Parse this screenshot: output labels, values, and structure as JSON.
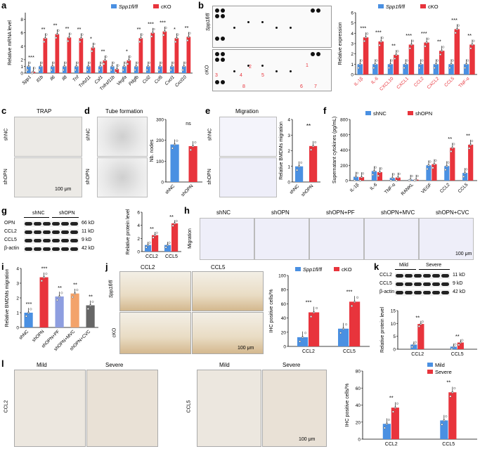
{
  "labels": {
    "a": "a",
    "b": "b",
    "c": "c",
    "d": "d",
    "e": "e",
    "f": "f",
    "g": "g",
    "h": "h",
    "i": "i",
    "j": "j",
    "k": "k",
    "l": "l"
  },
  "legend": {
    "ctrl": "Spp1fl/fl",
    "cko": "cKO",
    "shNC": "shNC",
    "shOPN": "shOPN",
    "mild": "Mild",
    "severe": "Severe"
  },
  "colors": {
    "ctrl": "#4a90e2",
    "cko": "#e8343c"
  },
  "panel_a": {
    "ylabel": "Relative mRNA level",
    "genes": [
      "Spp1",
      "Il1b",
      "Il6",
      "Il8",
      "Tnf",
      "Tnfsf11",
      "Csf1",
      "Tnfrsf11b",
      "Vegfa",
      "Pdgfb",
      "Ccl2",
      "Ccl5",
      "Cxcl1",
      "Cxcl10"
    ],
    "sig": [
      "***",
      "**",
      "**",
      "**",
      "**",
      "*",
      "**",
      "",
      "*",
      "**",
      "***",
      "***",
      "*",
      "**"
    ]
  },
  "panel_b": {
    "ylabel": "Relative expression",
    "arr_labels": {
      "ctrl": "Spp1fl/fl",
      "cko": "cKO"
    },
    "items": [
      "1. IL-1β",
      "2. IL-6",
      "3. CXCL10",
      "4. CXCL1",
      "5. CCL2",
      "6. CXCL2",
      "7. CCL5",
      "8. TNF-α"
    ],
    "sig": [
      "***",
      "***",
      "**",
      "***",
      "***",
      "**",
      "***",
      "**"
    ],
    "nums": [
      "1",
      "2",
      "3",
      "4",
      "5",
      "6",
      "7",
      "8"
    ]
  },
  "panel_c": {
    "title": "TRAP",
    "rows": [
      "shNC",
      "shOPN"
    ],
    "scale": "100 μm"
  },
  "panel_d": {
    "title": "Tube formation",
    "ylabel": "Nb. nodes",
    "sig": "ns",
    "rows": [
      "shNC",
      "shOPN"
    ]
  },
  "panel_e": {
    "title": "Migration",
    "ylabel": "Relative BMDMs migration",
    "sig": "**",
    "rows": [
      "shNC",
      "shOPN"
    ]
  },
  "panel_f": {
    "ylabel": "Supernatant cytokines (pg/mL)",
    "cats": [
      "IL-1β",
      "IL-6",
      "TNF-α",
      "RANKL",
      "VEGF",
      "CCL2",
      "CCL5"
    ],
    "sig": [
      "",
      "",
      "",
      "",
      "",
      "**",
      "**"
    ]
  },
  "panel_g": {
    "rows": [
      "OPN",
      "CCL2",
      "CCL5",
      "β-actin"
    ],
    "kda": [
      "66 kD",
      "11 kD",
      "9 kD",
      "42 kD"
    ],
    "groups": [
      "shNC",
      "shOPN"
    ],
    "ylabel": "Relative protein level",
    "cats": [
      "CCL2",
      "CCL5"
    ],
    "sig": [
      "**",
      "**"
    ]
  },
  "panel_h": {
    "cols": [
      "shNC",
      "shOPN",
      "shOPN+PF",
      "shOPN+MVC",
      "shOPN+CVC"
    ],
    "rowlabel": "Migration",
    "scale": "100 μm"
  },
  "panel_i": {
    "ylabel": "Relative BMDMs migration",
    "cats": [
      "shNC",
      "shOPN",
      "shOPN+PF",
      "shOPN+MVC",
      "shOPN+CVC"
    ],
    "sig": [
      "***",
      "***",
      "**",
      "**",
      "**"
    ]
  },
  "panel_j": {
    "cols": [
      "CCL2",
      "CCL5"
    ],
    "rows": [
      "Spp1fl/fl",
      "cKO"
    ],
    "ylabel": "IHC positive cells/%",
    "cats": [
      "CCL2",
      "CCL5"
    ],
    "sig": [
      "***",
      "***"
    ],
    "scale": "100 μm"
  },
  "panel_k": {
    "groups": [
      "Mild",
      "Severe"
    ],
    "rows": [
      "CCL2",
      "CCL5",
      "β-actin"
    ],
    "kda": [
      "11 kD",
      "9 kD",
      "42 kD"
    ],
    "ylabel": "Relative protein level",
    "cats": [
      "CCL2",
      "CCL5"
    ],
    "sig": [
      "**",
      "**"
    ]
  },
  "panel_l": {
    "cols": [
      "Mild",
      "Severe"
    ],
    "left_row": "CCL2",
    "right_row": "CCL5",
    "ylabel": "IHC positive cells/%",
    "cats": [
      "CCL2",
      "CCL5"
    ],
    "sig": [
      "**",
      "**"
    ],
    "scale": "100 μm"
  },
  "chart_data": [
    {
      "id": "a",
      "type": "bar",
      "categories": [
        "Spp1",
        "Il1b",
        "Il6",
        "Il8",
        "Tnf",
        "Tnfsf11",
        "Csf1",
        "Tnfrsf11b",
        "Vegfa",
        "Pdgfb",
        "Ccl2",
        "Ccl5",
        "Cxcl1",
        "Cxcl10"
      ],
      "series": [
        {
          "name": "Spp1fl/fl",
          "values": [
            1,
            1,
            1,
            1,
            1,
            1,
            1,
            1,
            1,
            1,
            1,
            1,
            1,
            1
          ]
        },
        {
          "name": "cKO",
          "values": [
            0.2,
            5.2,
            5.8,
            5.3,
            5.2,
            3.8,
            1.9,
            0.6,
            1.9,
            5.2,
            6.0,
            6.2,
            5.2,
            5.4
          ]
        }
      ],
      "ylabel": "Relative mRNA level",
      "ylim": [
        0,
        9
      ],
      "yticks": [
        0,
        1,
        2,
        4,
        6,
        8
      ]
    },
    {
      "id": "b",
      "type": "bar",
      "categories": [
        "IL-1β",
        "IL-6",
        "CXCL10",
        "CXCL1",
        "CCL2",
        "CXCL2",
        "CCL5",
        "TNF-α"
      ],
      "series": [
        {
          "name": "Spp1fl/fl",
          "values": [
            1,
            1,
            1,
            1,
            1,
            1,
            1,
            1
          ]
        },
        {
          "name": "cKO",
          "values": [
            3.6,
            3.2,
            1.9,
            2.9,
            3.1,
            2.3,
            4.4,
            2.9
          ]
        }
      ],
      "ylabel": "Relative expression",
      "ylim": [
        0,
        6
      ],
      "yticks": [
        0,
        1,
        2,
        3,
        4,
        5,
        6
      ]
    },
    {
      "id": "d",
      "type": "bar",
      "categories": [
        "shNC",
        "shOPN"
      ],
      "values": [
        180,
        172
      ],
      "ylabel": "Nb. nodes",
      "ylim": [
        0,
        300
      ],
      "yticks": [
        0,
        100,
        200,
        300
      ]
    },
    {
      "id": "e",
      "type": "bar",
      "categories": [
        "shNC",
        "shOPN"
      ],
      "values": [
        1.0,
        2.3
      ],
      "ylabel": "Relative BMDMs migration",
      "ylim": [
        0,
        4
      ],
      "yticks": [
        0,
        1,
        2,
        3,
        4
      ]
    },
    {
      "id": "f",
      "type": "bar",
      "categories": [
        "IL-1β",
        "IL-6",
        "TNF-α",
        "RANKL",
        "VEGF",
        "CCL2",
        "CCL5"
      ],
      "series": [
        {
          "name": "shNC",
          "values": [
            50,
            125,
            35,
            12,
            200,
            190,
            100
          ]
        },
        {
          "name": "shOPN",
          "values": [
            45,
            110,
            40,
            12,
            215,
            430,
            470
          ]
        }
      ],
      "ylabel": "Supernatant cytokines (pg/mL)",
      "ylim": [
        0,
        800
      ],
      "yticks": [
        0,
        200,
        400,
        600,
        800
      ]
    },
    {
      "id": "g",
      "type": "bar",
      "categories": [
        "CCL2",
        "CCL5"
      ],
      "series": [
        {
          "name": "shNC",
          "values": [
            1.0,
            1.0
          ]
        },
        {
          "name": "shOPN",
          "values": [
            2.5,
            4.3
          ]
        }
      ],
      "ylabel": "Relative protein level",
      "ylim": [
        0,
        6
      ],
      "yticks": [
        0,
        2,
        4,
        6
      ]
    },
    {
      "id": "i",
      "type": "bar",
      "categories": [
        "shNC",
        "shOPN",
        "shOPN+PF",
        "shOPN+MVC",
        "shOPN+CVC"
      ],
      "values": [
        1.0,
        3.4,
        2.1,
        2.3,
        1.5
      ],
      "ylabel": "Relative BMDMs migration",
      "ylim": [
        0,
        4
      ],
      "yticks": [
        0,
        1,
        2,
        3,
        4
      ]
    },
    {
      "id": "j",
      "type": "bar",
      "categories": [
        "CCL2",
        "CCL5"
      ],
      "series": [
        {
          "name": "Spp1fl/fl",
          "values": [
            13,
            25
          ]
        },
        {
          "name": "cKO",
          "values": [
            48,
            63
          ]
        }
      ],
      "ylabel": "IHC positive cells/%",
      "ylim": [
        0,
        100
      ],
      "yticks": [
        0,
        20,
        40,
        60,
        80,
        100
      ]
    },
    {
      "id": "k",
      "type": "bar",
      "categories": [
        "CCL2",
        "CCL5"
      ],
      "series": [
        {
          "name": "Mild",
          "values": [
            1.8,
            1.0
          ]
        },
        {
          "name": "Severe",
          "values": [
            9.8,
            2.6
          ]
        }
      ],
      "ylabel": "Relative protein level",
      "ylim": [
        0,
        15
      ],
      "yticks": [
        0,
        5,
        10,
        15
      ]
    },
    {
      "id": "l",
      "type": "bar",
      "categories": [
        "CCL2",
        "CCL5"
      ],
      "series": [
        {
          "name": "Mild",
          "values": [
            18,
            22
          ]
        },
        {
          "name": "Severe",
          "values": [
            37,
            55
          ]
        }
      ],
      "ylabel": "IHC positive cells/%",
      "ylim": [
        0,
        80
      ],
      "yticks": [
        0,
        20,
        40,
        60,
        80
      ]
    }
  ]
}
